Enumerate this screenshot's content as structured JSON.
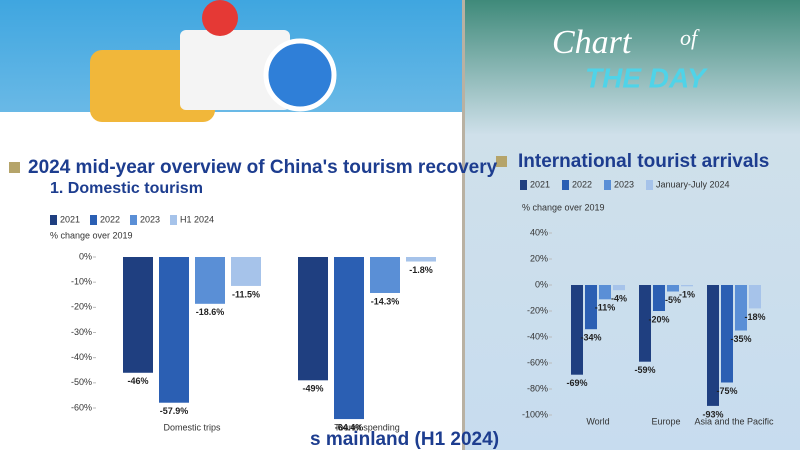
{
  "logo": [
    "Chart",
    "of",
    "THE DAY"
  ],
  "partial_heading": "s mainland (H1 2024)",
  "chart_data": [
    {
      "type": "bar",
      "title": "2024 mid-year overview of China's tourism recovery",
      "subtitle": "1. Domestic tourism",
      "y_label": "% change over 2019",
      "categories": [
        "Domestic trips",
        "Tourist spending"
      ],
      "series": [
        {
          "name": "2021",
          "color": "#1f3f80",
          "values": [
            -46,
            -49
          ],
          "value_labels": [
            "-46%",
            "-49%"
          ]
        },
        {
          "name": "2022",
          "color": "#2b5fb3",
          "values": [
            -57.9,
            -64.4
          ],
          "value_labels": [
            "-57.9%",
            "-64.4%"
          ]
        },
        {
          "name": "2023",
          "color": "#5a8fd6",
          "values": [
            -18.6,
            -14.3
          ],
          "value_labels": [
            "-18.6%",
            "-14.3%"
          ]
        },
        {
          "name": "H1 2024",
          "color": "#a6c3ea",
          "values": [
            -11.5,
            -1.8
          ],
          "value_labels": [
            "-11.5%",
            "-1.8%"
          ]
        }
      ],
      "ylim": [
        -60,
        0
      ],
      "yticks": [
        {
          "value": 0,
          "label": "0%"
        },
        {
          "value": -10,
          "label": "-10%"
        },
        {
          "value": -20,
          "label": "-20%"
        },
        {
          "value": -30,
          "label": "-30%"
        },
        {
          "value": -40,
          "label": "-40%"
        },
        {
          "value": -50,
          "label": "-50%"
        },
        {
          "value": -60,
          "label": "-60%"
        }
      ]
    },
    {
      "type": "bar",
      "title": "International tourist arrivals",
      "y_label": "% change over 2019",
      "categories": [
        "World",
        "Europe",
        "Asia and the Pacific"
      ],
      "series": [
        {
          "name": "2021",
          "color": "#1f3f80",
          "values": [
            -69,
            -59,
            -93
          ],
          "value_labels": [
            "-69%",
            "-59%",
            "-93%"
          ]
        },
        {
          "name": "2022",
          "color": "#2b5fb3",
          "values": [
            -34,
            -20,
            -75
          ],
          "value_labels": [
            "-34%",
            "-20%",
            "-75%"
          ]
        },
        {
          "name": "2023",
          "color": "#5a8fd6",
          "values": [
            -11,
            -5,
            -35
          ],
          "value_labels": [
            "-11%",
            "-5%",
            "-35%"
          ]
        },
        {
          "name": "January-July 2024",
          "color": "#a6c3ea",
          "values": [
            -4,
            -1,
            -18
          ],
          "value_labels": [
            "-4%",
            "-1%",
            "-18%"
          ]
        }
      ],
      "ylim": [
        -100,
        40
      ],
      "yticks": [
        {
          "value": 40,
          "label": "40%"
        },
        {
          "value": 20,
          "label": "20%"
        },
        {
          "value": 0,
          "label": "0%"
        },
        {
          "value": -20,
          "label": "-20%"
        },
        {
          "value": -40,
          "label": "-40%"
        },
        {
          "value": -60,
          "label": "-60%"
        },
        {
          "value": -80,
          "label": "-80%"
        },
        {
          "value": -100,
          "label": "-100%"
        }
      ]
    }
  ]
}
